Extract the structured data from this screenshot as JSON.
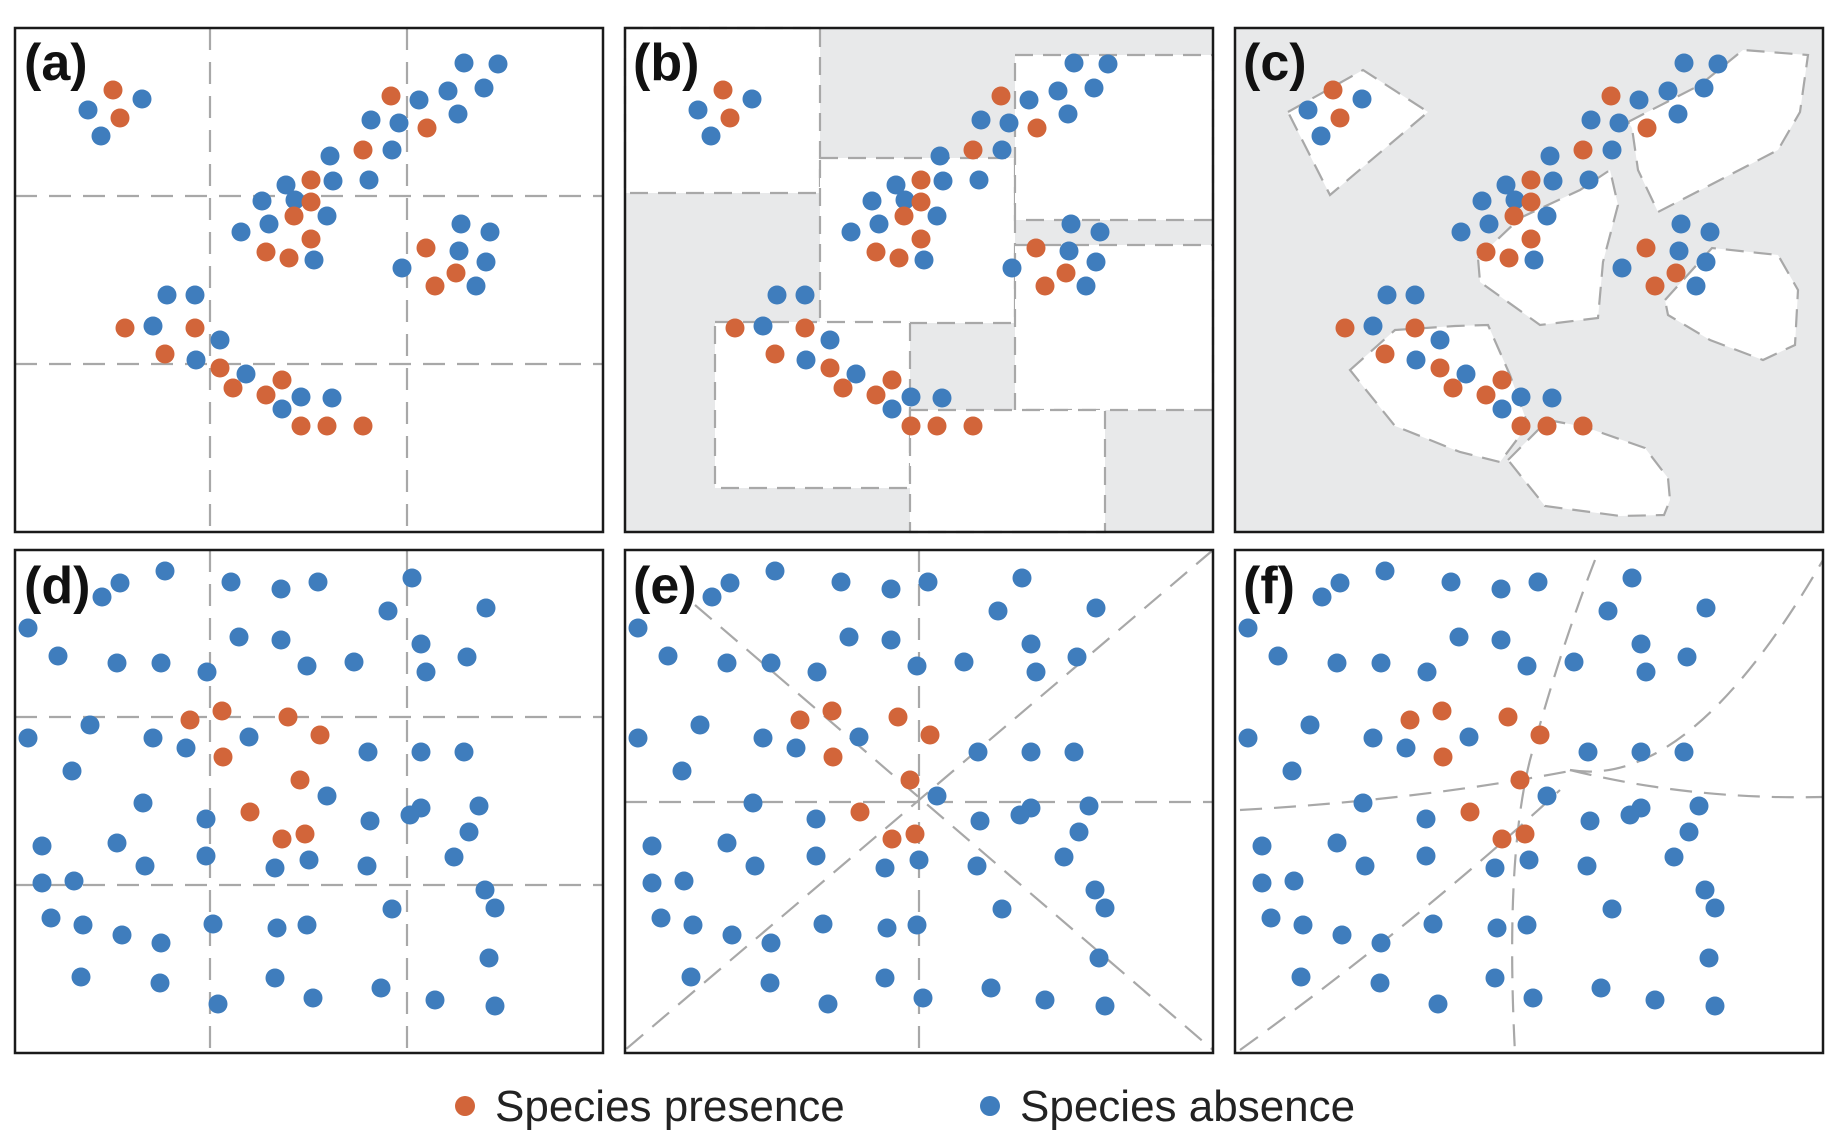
{
  "colors": {
    "presence": "#d2653a",
    "absence": "#3f7dbd",
    "background": "#e8e9ea"
  },
  "legend": {
    "presence_label": "Species presence",
    "absence_label": "Species absence"
  },
  "panels": [
    {
      "id": "a",
      "label": "(a)"
    },
    {
      "id": "b",
      "label": "(b)"
    },
    {
      "id": "c",
      "label": "(c)"
    },
    {
      "id": "d",
      "label": "(d)"
    },
    {
      "id": "e",
      "label": "(e)"
    },
    {
      "id": "f",
      "label": "(f)"
    }
  ]
}
